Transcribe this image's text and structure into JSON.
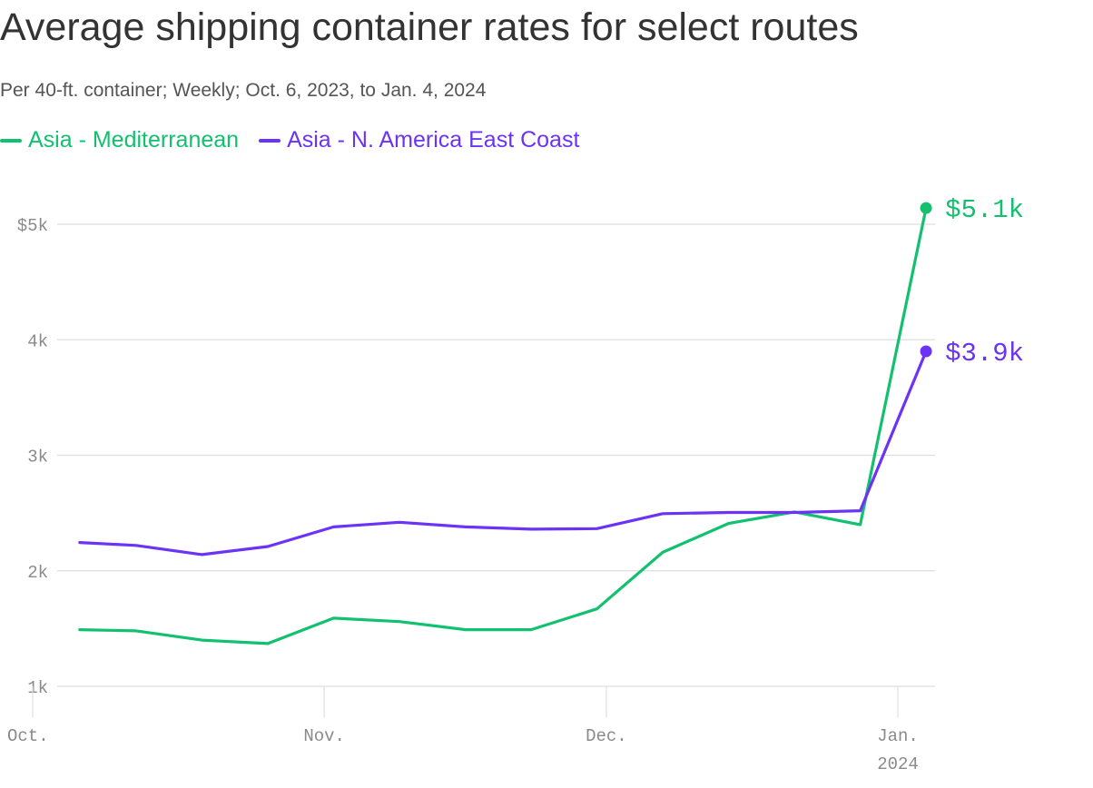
{
  "title": "Average shipping container rates for select routes",
  "subtitle": "Per 40-ft. container; Weekly; Oct. 6, 2023, to Jan. 4, 2024",
  "colors": {
    "series_1": "#12c16f",
    "series_2": "#6b33f5",
    "grid": "#dedede",
    "tick_text": "#8a8a8a"
  },
  "legend": [
    {
      "label": "Asia - Mediterranean",
      "color": "#12c16f"
    },
    {
      "label": "Asia - N. America East Coast",
      "color": "#6b33f5"
    }
  ],
  "end_labels": [
    "$5.1k",
    "$3.9k"
  ],
  "chart_data": {
    "type": "line",
    "title": "Average shipping container rates for select routes",
    "subtitle": "Per 40-ft. container; Weekly; Oct. 6, 2023, to Jan. 4, 2024",
    "xlabel": "",
    "ylabel": "",
    "x": [
      "2023-10-06",
      "2023-10-12",
      "2023-10-19",
      "2023-10-26",
      "2023-11-02",
      "2023-11-09",
      "2023-11-16",
      "2023-11-23",
      "2023-11-30",
      "2023-12-07",
      "2023-12-14",
      "2023-12-21",
      "2023-12-28",
      "2024-01-04"
    ],
    "series": [
      {
        "name": "Asia - Mediterranean",
        "color": "#12c16f",
        "values": [
          1490,
          1480,
          1400,
          1370,
          1590,
          1560,
          1490,
          1490,
          1670,
          2160,
          2410,
          2510,
          2400,
          5140
        ]
      },
      {
        "name": "Asia - N. America East Coast",
        "color": "#6b33f5",
        "values": [
          2245,
          2220,
          2140,
          2210,
          2380,
          2420,
          2380,
          2360,
          2365,
          2495,
          2505,
          2505,
          2520,
          3900
        ]
      }
    ],
    "end_labels": [
      "$5.1k",
      "$3.9k"
    ],
    "ylim": [
      1000,
      5500
    ],
    "y_ticks": [
      {
        "value": 1000,
        "label": "1k"
      },
      {
        "value": 2000,
        "label": "2k"
      },
      {
        "value": 3000,
        "label": "3k"
      },
      {
        "value": 4000,
        "label": "4k"
      },
      {
        "value": 5000,
        "label": "$5k"
      }
    ],
    "xlim": [
      "2023-10-01",
      "2024-01-07"
    ],
    "x_ticks": [
      {
        "date": "2023-10-01",
        "label": "Oct.",
        "sublabel": ""
      },
      {
        "date": "2023-11-01",
        "label": "Nov.",
        "sublabel": ""
      },
      {
        "date": "2023-12-01",
        "label": "Dec.",
        "sublabel": ""
      },
      {
        "date": "2024-01-01",
        "label": "Jan.",
        "sublabel": "2024"
      }
    ],
    "grid": true,
    "legend_position": "top-left"
  }
}
